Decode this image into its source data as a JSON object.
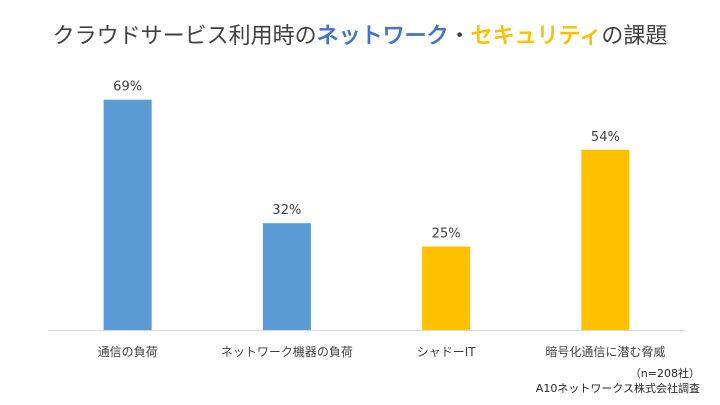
{
  "chart_data": {
    "type": "bar",
    "title": {
      "prefix": "クラウドサービス利用時の",
      "network": "ネットワーク",
      "separator": "・",
      "security": "セキュリティ",
      "suffix": "の課題"
    },
    "categories": [
      "通信の負荷",
      "ネットワーク機器の負荷",
      "シャドーIT",
      "暗号化通信に潜む脅威"
    ],
    "values": [
      69,
      32,
      25,
      54
    ],
    "value_labels": [
      "69%",
      "32%",
      "25%",
      "54%"
    ],
    "bar_colors": [
      "#5b9bd5",
      "#5b9bd5",
      "#ffc000",
      "#ffc000"
    ],
    "ylim": [
      0,
      80
    ],
    "grid": false,
    "xlabel": "",
    "ylabel": ""
  },
  "footnote": {
    "sample": "（n=208社）",
    "source": "A10ネットワークス株式会社調査"
  },
  "colors": {
    "network": "#4472c4",
    "security": "#ffc000",
    "axis": "#d9d9d9",
    "text": "#404040"
  }
}
